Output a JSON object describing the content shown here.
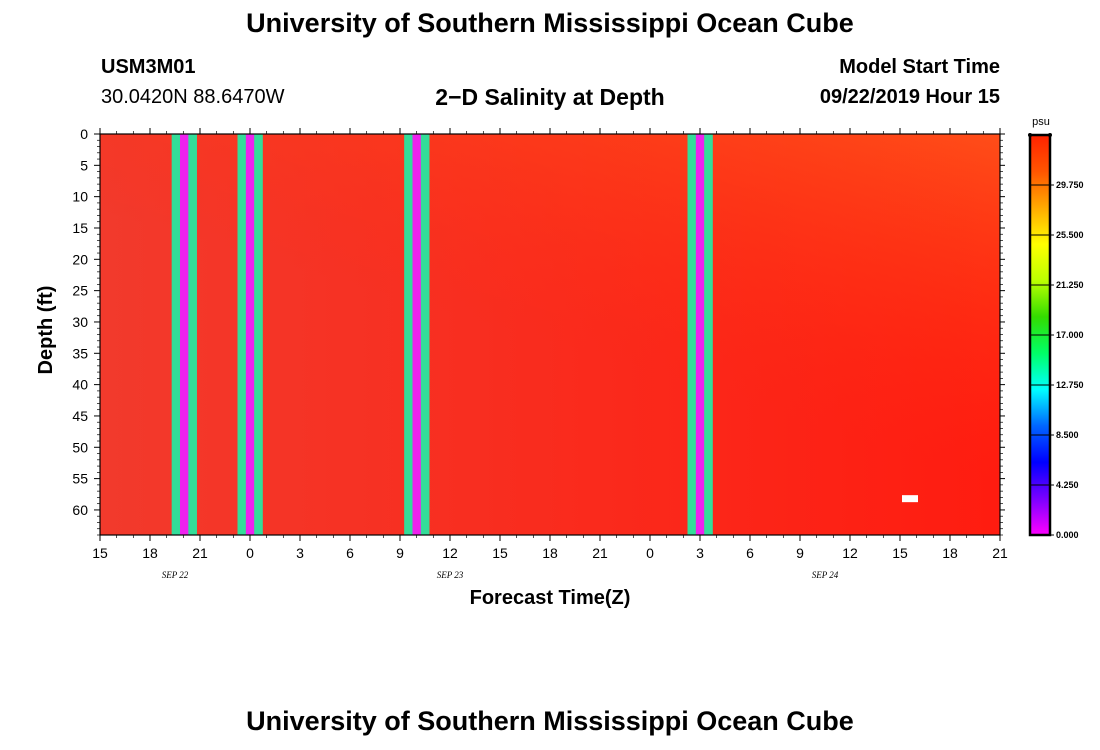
{
  "header": {
    "title": "University of Southern Mississippi Ocean Cube",
    "station_id": "USM3M01",
    "station_coords": "30.0420N 88.6470W",
    "plot_title": "2−D Salinity at Depth",
    "model_start_label": "Model Start Time",
    "model_start_value": "09/22/2019 Hour 15"
  },
  "footer": {
    "title": "University of Southern Mississippi Ocean Cube"
  },
  "chart_data": {
    "type": "heatmap",
    "title": "2-D Salinity at Depth",
    "xlabel": "Forecast Time(Z)",
    "ylabel": "Depth (ft)",
    "x_range_hours": [
      0,
      54
    ],
    "x_tick_labels": [
      "15",
      "18",
      "21",
      "0",
      "3",
      "6",
      "9",
      "12",
      "15",
      "18",
      "21",
      "0",
      "3",
      "6",
      "9",
      "12",
      "15",
      "18",
      "21"
    ],
    "date_labels": [
      {
        "text": "SEP 22",
        "hour": 4.5
      },
      {
        "text": "SEP 23",
        "hour": 21
      },
      {
        "text": "SEP 24",
        "hour": 43.5
      }
    ],
    "ylim": [
      0,
      64
    ],
    "y_ticks": [
      0,
      5,
      10,
      15,
      20,
      25,
      30,
      35,
      40,
      45,
      50,
      55,
      60
    ],
    "background_salinity_psu": 33.5,
    "data_gaps": [
      {
        "start_hour": 4.3,
        "end_hour": 5.8,
        "pattern": [
          "#33dd99",
          "#ee22ee",
          "#33dd99"
        ]
      },
      {
        "start_hour": 8.25,
        "end_hour": 9.75,
        "pattern": [
          "#33dd99",
          "#ee22ee",
          "#33dd99"
        ]
      },
      {
        "start_hour": 18.25,
        "end_hour": 19.75,
        "pattern": [
          "#33dd99",
          "#ee22ee",
          "#33dd99"
        ]
      },
      {
        "start_hour": 35.25,
        "end_hour": 36.75,
        "pattern": [
          "#33dd99",
          "#ee22ee",
          "#33dd99"
        ]
      }
    ],
    "marker": {
      "hour": 48.6,
      "depth_ft": 58.2,
      "color": "#ffffff"
    },
    "colorbar": {
      "unit": "psu",
      "min": 0,
      "max": 34,
      "tick_values": [
        0,
        4.25,
        8.5,
        12.75,
        17,
        21.25,
        25.5,
        29.75
      ],
      "tick_labels": [
        "0.000",
        "4.250",
        "8.500",
        "12.750",
        "17.000",
        "21.250",
        "25.500",
        "29.750"
      ],
      "colors": [
        "#ff00ff",
        "#7a00ff",
        "#0000ff",
        "#0066ff",
        "#00ffff",
        "#00ff66",
        "#33dd00",
        "#bbff00",
        "#ffff00",
        "#ffaa00",
        "#ff5500",
        "#ff2200"
      ]
    }
  }
}
